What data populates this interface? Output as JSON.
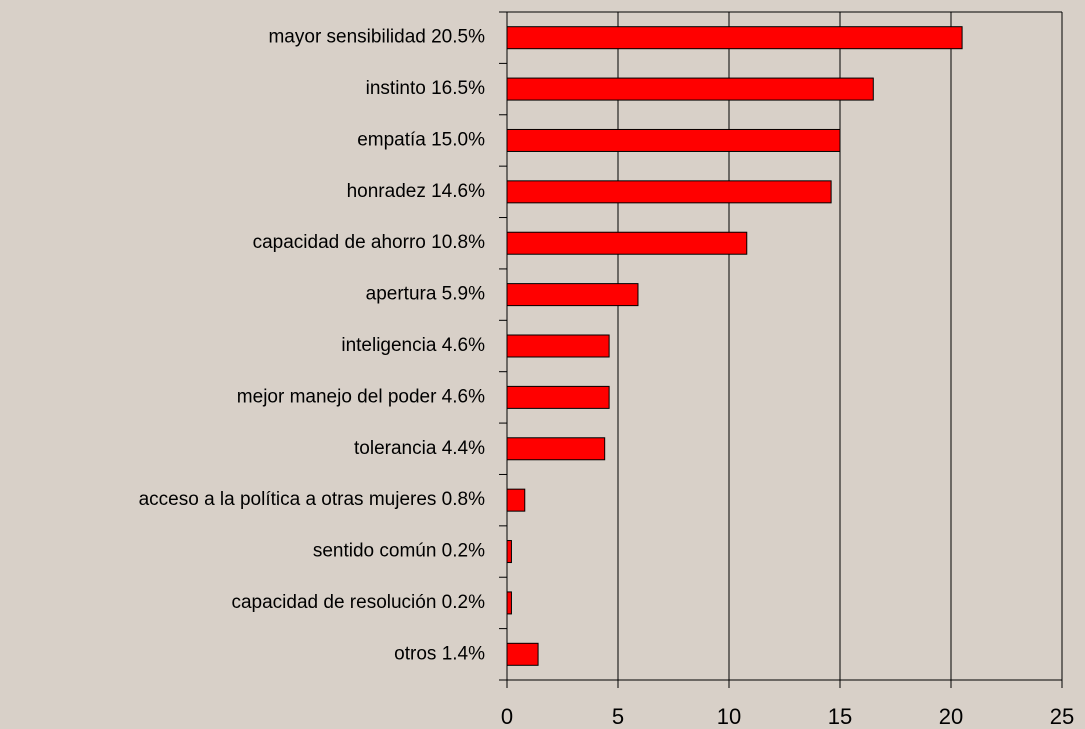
{
  "chart_data": {
    "type": "bar",
    "orientation": "horizontal",
    "categories": [
      "mayor sensibilidad 20.5%",
      "instinto 16.5%",
      "empatía 15.0%",
      "honradez 14.6%",
      "capacidad de ahorro 10.8%",
      "apertura 5.9%",
      "inteligencia 4.6%",
      "mejor manejo del poder 4.6%",
      "tolerancia 4.4%",
      "acceso a la política a otras mujeres 0.8%",
      "sentido común 0.2%",
      "capacidad de resolución 0.2%",
      "otros 1.4%"
    ],
    "values": [
      20.5,
      16.5,
      15.0,
      14.6,
      10.8,
      5.9,
      4.6,
      4.6,
      4.4,
      0.8,
      0.2,
      0.2,
      1.4
    ],
    "color": "#ff0000",
    "xlim": [
      0,
      25
    ],
    "xticks": [
      0,
      5,
      10,
      15,
      20,
      25
    ],
    "grid": true
  }
}
